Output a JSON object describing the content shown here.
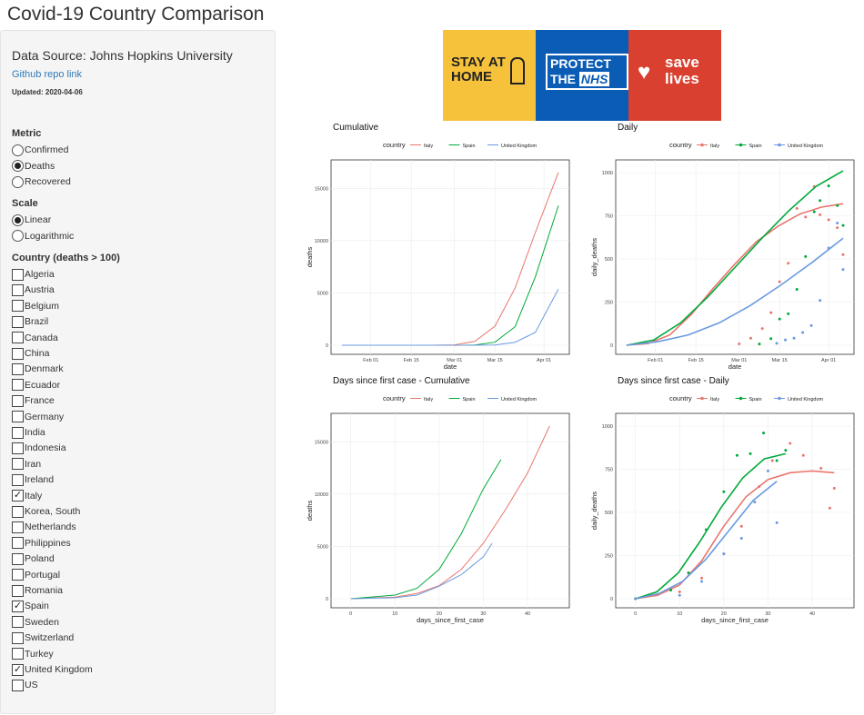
{
  "app_title": "Covid-19 Country Comparison",
  "sidebar": {
    "source": "Data Source: Johns Hopkins University",
    "github_link": "Github repo link",
    "updated": "Updated: 2020-04-06",
    "metric_label": "Metric",
    "metrics": [
      {
        "label": "Confirmed",
        "selected": false
      },
      {
        "label": "Deaths",
        "selected": true
      },
      {
        "label": "Recovered",
        "selected": false
      }
    ],
    "scale_label": "Scale",
    "scales": [
      {
        "label": "Linear",
        "selected": true
      },
      {
        "label": "Logarithmic",
        "selected": false
      }
    ],
    "country_label": "Country (deaths > 100)",
    "countries": [
      {
        "label": "Algeria",
        "checked": false
      },
      {
        "label": "Austria",
        "checked": false
      },
      {
        "label": "Belgium",
        "checked": false
      },
      {
        "label": "Brazil",
        "checked": false
      },
      {
        "label": "Canada",
        "checked": false
      },
      {
        "label": "China",
        "checked": false
      },
      {
        "label": "Denmark",
        "checked": false
      },
      {
        "label": "Ecuador",
        "checked": false
      },
      {
        "label": "France",
        "checked": false
      },
      {
        "label": "Germany",
        "checked": false
      },
      {
        "label": "India",
        "checked": false
      },
      {
        "label": "Indonesia",
        "checked": false
      },
      {
        "label": "Iran",
        "checked": false
      },
      {
        "label": "Ireland",
        "checked": false
      },
      {
        "label": "Italy",
        "checked": true
      },
      {
        "label": "Korea, South",
        "checked": false
      },
      {
        "label": "Netherlands",
        "checked": false
      },
      {
        "label": "Philippines",
        "checked": false
      },
      {
        "label": "Poland",
        "checked": false
      },
      {
        "label": "Portugal",
        "checked": false
      },
      {
        "label": "Romania",
        "checked": false
      },
      {
        "label": "Spain",
        "checked": true
      },
      {
        "label": "Sweden",
        "checked": false
      },
      {
        "label": "Switzerland",
        "checked": false
      },
      {
        "label": "Turkey",
        "checked": false
      },
      {
        "label": "United Kingdom",
        "checked": true
      },
      {
        "label": "US",
        "checked": false
      }
    ]
  },
  "banner": {
    "stay_at_home": "STAY AT HOME",
    "protect_the": "PROTECT THE",
    "nhs": "NHS",
    "save_lives": "save lives"
  },
  "colors": {
    "Italy": "#e8766d",
    "Spain": "#00a93a",
    "United Kingdom": "#6a9be0"
  },
  "chart_data": [
    {
      "type": "line",
      "title": "Cumulative",
      "xlabel": "date",
      "ylabel": "deaths",
      "legend_title": "country",
      "legend_position": "top",
      "x_ticks": [
        "Feb 01",
        "Feb 15",
        "Mar 01",
        "Mar 15",
        "Apr 01"
      ],
      "y_ticks": [
        "0",
        "5000",
        "10000",
        "15000"
      ],
      "xlim": [
        "2020-01-22",
        "2020-04-06"
      ],
      "ylim": [
        0,
        16500
      ],
      "series": [
        {
          "name": "Italy",
          "x": [
            "2020-01-22",
            "2020-02-21",
            "2020-03-01",
            "2020-03-08",
            "2020-03-15",
            "2020-03-22",
            "2020-03-29",
            "2020-04-06"
          ],
          "values": [
            0,
            1,
            34,
            366,
            1809,
            5476,
            10779,
            16523
          ]
        },
        {
          "name": "Spain",
          "x": [
            "2020-01-22",
            "2020-03-03",
            "2020-03-08",
            "2020-03-15",
            "2020-03-22",
            "2020-03-29",
            "2020-04-06"
          ],
          "values": [
            0,
            1,
            17,
            288,
            1772,
            6528,
            13341
          ]
        },
        {
          "name": "United Kingdom",
          "x": [
            "2020-01-22",
            "2020-03-05",
            "2020-03-15",
            "2020-03-22",
            "2020-03-29",
            "2020-04-06"
          ],
          "values": [
            0,
            1,
            21,
            282,
            1228,
            5373
          ]
        }
      ]
    },
    {
      "type": "scatter",
      "title": "Daily",
      "xlabel": "date",
      "ylabel": "daily_deaths",
      "legend_title": "country",
      "legend_position": "top",
      "x_ticks": [
        "Feb 01",
        "Feb 15",
        "Mar 01",
        "Mar 15",
        "Apr 01"
      ],
      "y_ticks": [
        "0",
        "250",
        "500",
        "750",
        "1000"
      ],
      "xlim": [
        "2020-01-22",
        "2020-04-06"
      ],
      "ylim": [
        0,
        1000
      ],
      "series": [
        {
          "name": "Italy",
          "x": [
            "2020-03-01",
            "2020-03-05",
            "2020-03-09",
            "2020-03-12",
            "2020-03-15",
            "2020-03-18",
            "2020-03-21",
            "2020-03-24",
            "2020-03-27",
            "2020-03-29",
            "2020-04-01",
            "2020-04-04",
            "2020-04-06"
          ],
          "values": [
            8,
            41,
            97,
            189,
            368,
            475,
            793,
            743,
            919,
            756,
            727,
            681,
            525
          ],
          "trend": [
            0,
            10,
            60,
            180,
            330,
            470,
            600,
            690,
            760,
            800,
            820
          ]
        },
        {
          "name": "Spain",
          "x": [
            "2020-03-08",
            "2020-03-12",
            "2020-03-15",
            "2020-03-18",
            "2020-03-21",
            "2020-03-24",
            "2020-03-27",
            "2020-03-29",
            "2020-04-01",
            "2020-04-04",
            "2020-04-06"
          ],
          "values": [
            7,
            38,
            152,
            182,
            324,
            514,
            773,
            838,
            923,
            809,
            694
          ],
          "trend": [
            0,
            30,
            130,
            280,
            450,
            620,
            780,
            920,
            1010
          ]
        },
        {
          "name": "United Kingdom",
          "x": [
            "2020-03-14",
            "2020-03-17",
            "2020-03-20",
            "2020-03-23",
            "2020-03-26",
            "2020-03-29",
            "2020-04-01",
            "2020-04-04",
            "2020-04-06"
          ],
          "values": [
            11,
            31,
            41,
            74,
            114,
            260,
            563,
            708,
            439
          ],
          "trend": [
            0,
            20,
            60,
            130,
            230,
            350,
            480,
            620
          ]
        }
      ]
    },
    {
      "type": "line",
      "title": "Days since first case - Cumulative",
      "xlabel": "days_since_first_case",
      "ylabel": "deaths",
      "legend_title": "country",
      "legend_position": "top",
      "x_ticks": [
        "0",
        "10",
        "20",
        "30",
        "40"
      ],
      "y_ticks": [
        "0",
        "5000",
        "10000",
        "15000"
      ],
      "xlim": [
        -2,
        47
      ],
      "ylim": [
        0,
        16500
      ],
      "series": [
        {
          "name": "Italy",
          "x": [
            0,
            10,
            15,
            20,
            25,
            30,
            35,
            40,
            45
          ],
          "values": [
            0,
            150,
            500,
            1250,
            2800,
            5300,
            8500,
            12000,
            16500
          ]
        },
        {
          "name": "Spain",
          "x": [
            0,
            10,
            15,
            20,
            25,
            30,
            34
          ],
          "values": [
            0,
            350,
            1000,
            2800,
            6200,
            10500,
            13300
          ]
        },
        {
          "name": "United Kingdom",
          "x": [
            0,
            10,
            15,
            20,
            25,
            30,
            32
          ],
          "values": [
            0,
            100,
            350,
            1200,
            2300,
            4000,
            5300
          ]
        }
      ]
    },
    {
      "type": "scatter",
      "title": "Days since first case - Daily",
      "xlabel": "days_since_first_case",
      "ylabel": "daily_deaths",
      "legend_title": "country",
      "legend_position": "top",
      "x_ticks": [
        "0",
        "10",
        "20",
        "30",
        "40"
      ],
      "y_ticks": [
        "0",
        "250",
        "500",
        "750",
        "1000"
      ],
      "xlim": [
        -2,
        47
      ],
      "ylim": [
        0,
        1000
      ],
      "series": [
        {
          "name": "Italy",
          "x": [
            0,
            10,
            15,
            20,
            24,
            28,
            31,
            35,
            38,
            42,
            44,
            45
          ],
          "values": [
            0,
            40,
            120,
            260,
            420,
            650,
            800,
            900,
            830,
            756,
            525,
            640
          ],
          "trend": [
            0,
            20,
            80,
            220,
            420,
            590,
            690,
            730,
            740,
            730
          ]
        },
        {
          "name": "Spain",
          "x": [
            0,
            8,
            12,
            16,
            20,
            23,
            26,
            29,
            32,
            34
          ],
          "values": [
            0,
            50,
            150,
            400,
            620,
            830,
            840,
            960,
            800,
            860
          ],
          "trend": [
            0,
            40,
            150,
            330,
            530,
            700,
            810,
            840
          ]
        },
        {
          "name": "United Kingdom",
          "x": [
            0,
            10,
            15,
            20,
            24,
            27,
            30,
            32
          ],
          "values": [
            0,
            20,
            100,
            260,
            350,
            560,
            740,
            440
          ],
          "trend": [
            0,
            30,
            100,
            230,
            400,
            570,
            680
          ]
        }
      ]
    }
  ]
}
